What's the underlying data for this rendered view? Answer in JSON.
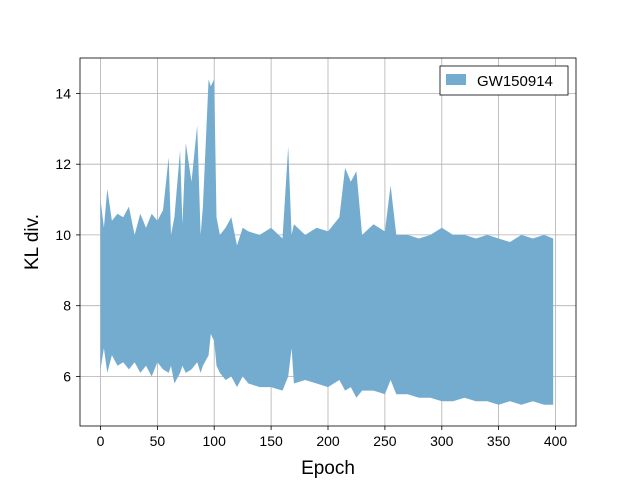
{
  "chart_data": {
    "type": "area",
    "title": "",
    "xlabel": "Epoch",
    "ylabel": "KL div.",
    "xlim": [
      -18,
      418
    ],
    "ylim": [
      4.6,
      15.0
    ],
    "xticks": [
      0,
      50,
      100,
      150,
      200,
      250,
      300,
      350,
      400
    ],
    "yticks": [
      6,
      8,
      10,
      12,
      14
    ],
    "grid": true,
    "legend_position": "top-right",
    "fill_color": "#74acd0",
    "series": [
      {
        "name": "GW150914",
        "x": [
          0,
          3,
          6,
          10,
          15,
          20,
          25,
          30,
          35,
          40,
          45,
          50,
          55,
          60,
          62,
          65,
          70,
          72,
          75,
          80,
          85,
          88,
          90,
          95,
          97,
          100,
          102,
          105,
          110,
          115,
          120,
          125,
          130,
          140,
          150,
          160,
          165,
          168,
          170,
          180,
          190,
          200,
          210,
          215,
          220,
          225,
          230,
          240,
          250,
          255,
          260,
          270,
          280,
          290,
          300,
          310,
          320,
          330,
          340,
          350,
          360,
          370,
          380,
          390,
          398
        ],
        "upper": [
          11.0,
          10.2,
          11.3,
          10.4,
          10.6,
          10.5,
          10.8,
          10.0,
          10.6,
          10.2,
          10.6,
          10.4,
          10.7,
          12.2,
          10.0,
          10.5,
          12.4,
          10.3,
          12.6,
          11.5,
          13.1,
          10.0,
          10.8,
          14.4,
          14.2,
          14.4,
          10.5,
          10.0,
          10.2,
          10.5,
          9.7,
          10.2,
          10.1,
          10.0,
          10.2,
          9.9,
          12.5,
          10.0,
          10.3,
          10.0,
          10.2,
          10.1,
          10.5,
          11.9,
          11.5,
          11.8,
          10.0,
          10.3,
          10.1,
          11.4,
          10.0,
          10.0,
          9.9,
          10.0,
          10.2,
          10.0,
          10.0,
          9.9,
          10.0,
          9.9,
          9.8,
          10.0,
          9.9,
          10.0,
          9.9
        ],
        "lower": [
          6.2,
          6.8,
          6.1,
          6.6,
          6.3,
          6.4,
          6.2,
          6.4,
          6.1,
          6.3,
          6.0,
          6.4,
          6.2,
          6.1,
          6.3,
          5.8,
          6.1,
          6.3,
          6.1,
          6.2,
          6.4,
          6.1,
          6.3,
          6.6,
          7.2,
          7.0,
          6.3,
          6.1,
          5.9,
          6.0,
          5.7,
          6.0,
          5.8,
          5.7,
          5.7,
          5.6,
          6.0,
          6.8,
          5.8,
          5.9,
          5.8,
          5.7,
          5.9,
          5.6,
          5.7,
          5.4,
          5.6,
          5.6,
          5.5,
          5.9,
          5.5,
          5.5,
          5.4,
          5.4,
          5.3,
          5.3,
          5.4,
          5.3,
          5.3,
          5.2,
          5.3,
          5.2,
          5.3,
          5.2,
          5.2
        ]
      }
    ]
  }
}
